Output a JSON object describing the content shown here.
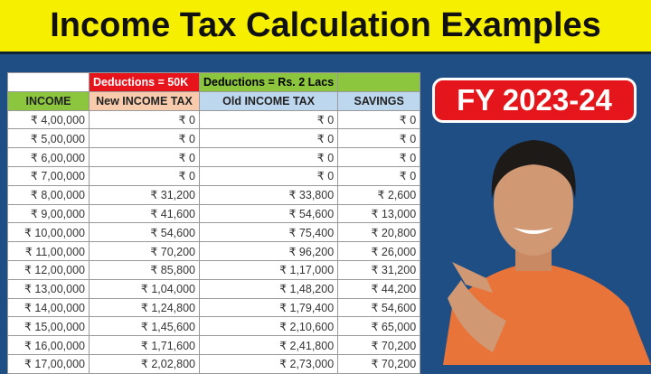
{
  "title": "Income Tax Calculation Examples",
  "badge": "FY 2023-24",
  "table": {
    "group_headers": [
      "",
      "Deductions = 50K",
      "Deductions = Rs. 2 Lacs",
      ""
    ],
    "headers": [
      "INCOME",
      "New INCOME TAX",
      "Old INCOME TAX",
      "SAVINGS"
    ],
    "rows": [
      [
        "₹ 4,00,000",
        "₹ 0",
        "₹ 0",
        "₹ 0"
      ],
      [
        "₹ 5,00,000",
        "₹ 0",
        "₹ 0",
        "₹ 0"
      ],
      [
        "₹ 6,00,000",
        "₹ 0",
        "₹ 0",
        "₹ 0"
      ],
      [
        "₹ 7,00,000",
        "₹ 0",
        "₹ 0",
        "₹ 0"
      ],
      [
        "₹ 8,00,000",
        "₹ 31,200",
        "₹ 33,800",
        "₹ 2,600"
      ],
      [
        "₹ 9,00,000",
        "₹ 41,600",
        "₹ 54,600",
        "₹ 13,000"
      ],
      [
        "₹ 10,00,000",
        "₹ 54,600",
        "₹ 75,400",
        "₹ 20,800"
      ],
      [
        "₹ 11,00,000",
        "₹ 70,200",
        "₹ 96,200",
        "₹ 26,000"
      ],
      [
        "₹ 12,00,000",
        "₹ 85,800",
        "₹ 1,17,000",
        "₹ 31,200"
      ],
      [
        "₹ 13,00,000",
        "₹ 1,04,000",
        "₹ 1,48,200",
        "₹ 44,200"
      ],
      [
        "₹ 14,00,000",
        "₹ 1,24,800",
        "₹ 1,79,400",
        "₹ 54,600"
      ],
      [
        "₹ 15,00,000",
        "₹ 1,45,600",
        "₹ 2,10,600",
        "₹ 65,000"
      ],
      [
        "₹ 16,00,000",
        "₹ 1,71,600",
        "₹ 2,41,800",
        "₹ 70,200"
      ],
      [
        "₹ 17,00,000",
        "₹ 2,02,800",
        "₹ 2,73,000",
        "₹ 70,200"
      ]
    ]
  },
  "colors": {
    "title_bg": "#f7ef00",
    "bg": "#1f4e84",
    "badge": "#e4161b",
    "green": "#8cc63f",
    "red": "#e8141b",
    "peach": "#f8cbad",
    "lightblue": "#bdd7ee"
  }
}
